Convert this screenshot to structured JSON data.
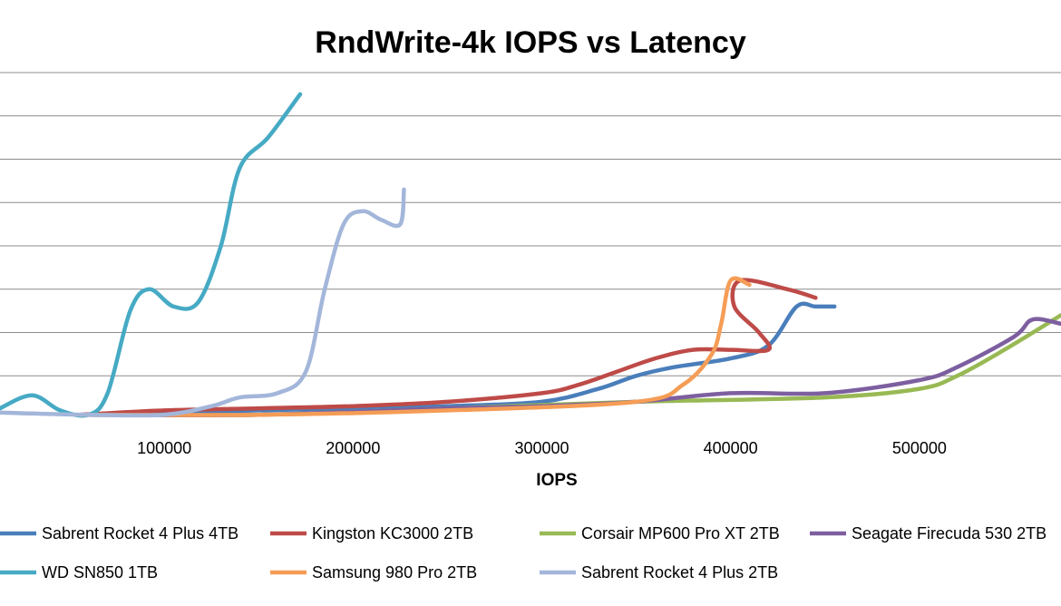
{
  "chart_data": {
    "type": "line",
    "title": "RndWrite-4k IOPS vs Latency",
    "xlabel": "IOPS",
    "ylabel": "",
    "xlim": [
      13000,
      575000
    ],
    "ylim": [
      0,
      8
    ],
    "x_ticks": [
      100000,
      200000,
      300000,
      400000,
      500000
    ],
    "x_tick_labels": [
      "100000",
      "200000",
      "300000",
      "400000",
      "500000"
    ],
    "y_gridlines": [
      1,
      2,
      3,
      4,
      5,
      6,
      7,
      8
    ],
    "grid": true,
    "legend_position": "bottom",
    "series": [
      {
        "name": "Sabrent Rocket 4 Plus 4TB",
        "color": "#4a7ebb",
        "points": [
          [
            55000,
            0.1
          ],
          [
            100000,
            0.15
          ],
          [
            150000,
            0.2
          ],
          [
            200000,
            0.25
          ],
          [
            250000,
            0.3
          ],
          [
            300000,
            0.4
          ],
          [
            330000,
            0.7
          ],
          [
            350000,
            1.0
          ],
          [
            370000,
            1.2
          ],
          [
            400000,
            1.4
          ],
          [
            420000,
            1.7
          ],
          [
            435000,
            2.6
          ],
          [
            445000,
            2.6
          ],
          [
            455000,
            2.6
          ]
        ]
      },
      {
        "name": "Kingston KC3000 2TB",
        "color": "#be4b48",
        "points": [
          [
            55000,
            0.1
          ],
          [
            100000,
            0.2
          ],
          [
            150000,
            0.25
          ],
          [
            200000,
            0.3
          ],
          [
            250000,
            0.4
          ],
          [
            300000,
            0.6
          ],
          [
            320000,
            0.8
          ],
          [
            340000,
            1.1
          ],
          [
            360000,
            1.4
          ],
          [
            380000,
            1.6
          ],
          [
            400000,
            1.6
          ],
          [
            420000,
            1.6
          ],
          [
            415000,
            2.0
          ],
          [
            402000,
            2.6
          ],
          [
            405000,
            3.2
          ],
          [
            430000,
            3.0
          ],
          [
            445000,
            2.8
          ]
        ]
      },
      {
        "name": "Corsair MP600 Pro XT 2TB",
        "color": "#98b954",
        "points": [
          [
            55000,
            0.1
          ],
          [
            150000,
            0.1
          ],
          [
            250000,
            0.25
          ],
          [
            350000,
            0.4
          ],
          [
            450000,
            0.5
          ],
          [
            500000,
            0.7
          ],
          [
            520000,
            1.0
          ],
          [
            545000,
            1.6
          ],
          [
            575000,
            2.4
          ]
        ]
      },
      {
        "name": "Seagate Firecuda 530 2TB",
        "color": "#7d5fa0",
        "points": [
          [
            55000,
            0.1
          ],
          [
            150000,
            0.1
          ],
          [
            250000,
            0.25
          ],
          [
            300000,
            0.3
          ],
          [
            350000,
            0.4
          ],
          [
            400000,
            0.6
          ],
          [
            450000,
            0.6
          ],
          [
            500000,
            0.9
          ],
          [
            520000,
            1.2
          ],
          [
            550000,
            1.9
          ],
          [
            560000,
            2.3
          ],
          [
            575000,
            2.2
          ]
        ]
      },
      {
        "name": "WD SN850 1TB",
        "color": "#46aac4",
        "points": [
          [
            13000,
            0.25
          ],
          [
            30000,
            0.55
          ],
          [
            45000,
            0.2
          ],
          [
            60000,
            0.1
          ],
          [
            70000,
            0.6
          ],
          [
            82000,
            2.5
          ],
          [
            92000,
            3.0
          ],
          [
            105000,
            2.6
          ],
          [
            118000,
            2.7
          ],
          [
            130000,
            4.0
          ],
          [
            140000,
            5.8
          ],
          [
            155000,
            6.5
          ],
          [
            172000,
            7.5
          ]
        ]
      },
      {
        "name": "Samsung 980 Pro 2TB",
        "color": "#f59d56",
        "points": [
          [
            55000,
            0.1
          ],
          [
            150000,
            0.1
          ],
          [
            250000,
            0.2
          ],
          [
            350000,
            0.4
          ],
          [
            375000,
            0.8
          ],
          [
            390000,
            1.5
          ],
          [
            395000,
            2.2
          ],
          [
            400000,
            3.2
          ],
          [
            410000,
            3.1
          ]
        ]
      },
      {
        "name": "Sabrent Rocket 4 Plus 2TB",
        "color": "#a3b6da",
        "points": [
          [
            13000,
            0.15
          ],
          [
            60000,
            0.1
          ],
          [
            100000,
            0.1
          ],
          [
            125000,
            0.3
          ],
          [
            140000,
            0.5
          ],
          [
            160000,
            0.6
          ],
          [
            175000,
            1.1
          ],
          [
            185000,
            3.0
          ],
          [
            195000,
            4.5
          ],
          [
            205000,
            4.8
          ],
          [
            215000,
            4.6
          ],
          [
            225000,
            4.5
          ],
          [
            227000,
            5.3
          ]
        ]
      }
    ]
  }
}
